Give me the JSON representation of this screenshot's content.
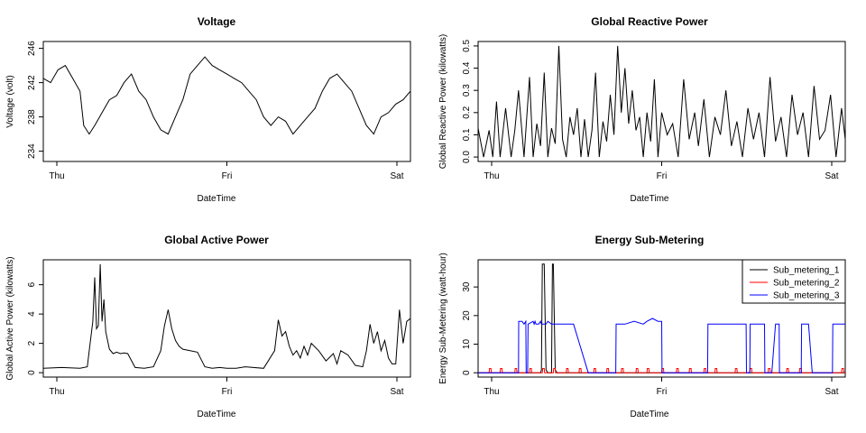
{
  "chart_data": [
    {
      "id": "voltage",
      "type": "line",
      "title": "Voltage",
      "xlabel": "DateTime",
      "ylabel": "Voltage (volt)",
      "xticks": [
        "Thu",
        "Fri",
        "Sat"
      ],
      "yticks": [
        234,
        238,
        242,
        246
      ],
      "xlim": [
        0,
        2
      ],
      "ylim": [
        232.8,
        246.8
      ],
      "grid": false,
      "series": [
        {
          "color": "#000000",
          "x": [
            0,
            0.04,
            0.08,
            0.12,
            0.16,
            0.2,
            0.22,
            0.25,
            0.28,
            0.32,
            0.36,
            0.4,
            0.44,
            0.48,
            0.52,
            0.56,
            0.6,
            0.64,
            0.68,
            0.72,
            0.76,
            0.8,
            0.84,
            0.88,
            0.92,
            0.96,
            1.0,
            1.04,
            1.08,
            1.12,
            1.16,
            1.2,
            1.24,
            1.28,
            1.32,
            1.36,
            1.4,
            1.44,
            1.48,
            1.52,
            1.56,
            1.6,
            1.64,
            1.68,
            1.72,
            1.76,
            1.8,
            1.84,
            1.88,
            1.92,
            1.96,
            2.0
          ],
          "y": [
            242.5,
            242,
            243.5,
            244,
            242.5,
            241,
            237,
            236,
            237,
            238.5,
            240,
            240.5,
            242,
            243,
            241,
            240,
            238,
            236.5,
            236,
            238,
            240,
            243,
            244,
            245,
            244,
            243.5,
            243,
            242.5,
            242,
            241,
            240,
            238,
            237,
            238,
            237.5,
            236,
            237,
            238,
            239,
            241,
            242.5,
            243,
            242,
            241,
            239,
            237,
            236,
            238,
            238.5,
            239.5,
            240,
            241
          ]
        }
      ]
    },
    {
      "id": "reactive",
      "type": "line",
      "title": "Global Reactive Power",
      "xlabel": "DateTime",
      "ylabel": "Global Reactive Power (kilowatts)",
      "xticks": [
        "Thu",
        "Fri",
        "Sat"
      ],
      "yticks": [
        0.0,
        0.1,
        0.2,
        0.3,
        0.4,
        0.5
      ],
      "xlim": [
        0,
        2
      ],
      "ylim": [
        -0.02,
        0.52
      ],
      "grid": false,
      "series": [
        {
          "color": "#000000",
          "x": [
            0,
            0.03,
            0.06,
            0.08,
            0.1,
            0.12,
            0.15,
            0.18,
            0.2,
            0.22,
            0.25,
            0.28,
            0.3,
            0.32,
            0.34,
            0.36,
            0.38,
            0.4,
            0.42,
            0.44,
            0.46,
            0.48,
            0.5,
            0.52,
            0.54,
            0.56,
            0.58,
            0.6,
            0.62,
            0.64,
            0.66,
            0.68,
            0.7,
            0.72,
            0.74,
            0.76,
            0.78,
            0.8,
            0.82,
            0.84,
            0.86,
            0.88,
            0.9,
            0.92,
            0.94,
            0.96,
            0.98,
            1.0,
            1.03,
            1.06,
            1.09,
            1.12,
            1.15,
            1.18,
            1.2,
            1.23,
            1.26,
            1.29,
            1.32,
            1.35,
            1.38,
            1.41,
            1.44,
            1.47,
            1.5,
            1.53,
            1.56,
            1.59,
            1.62,
            1.65,
            1.68,
            1.71,
            1.74,
            1.77,
            1.8,
            1.83,
            1.86,
            1.89,
            1.92,
            1.95,
            1.98,
            2.0
          ],
          "y": [
            0.13,
            0,
            0.12,
            0,
            0.25,
            0,
            0.22,
            0,
            0.12,
            0.3,
            0,
            0.36,
            0,
            0.15,
            0.05,
            0.38,
            0,
            0.13,
            0.06,
            0.5,
            0.08,
            0,
            0.18,
            0.1,
            0.22,
            0,
            0.17,
            0,
            0.12,
            0.38,
            0,
            0.16,
            0.07,
            0.28,
            0.1,
            0.5,
            0.2,
            0.4,
            0.15,
            0.3,
            0.12,
            0.18,
            0,
            0.2,
            0.07,
            0.35,
            0,
            0.2,
            0.1,
            0.15,
            0,
            0.35,
            0.08,
            0.2,
            0.05,
            0.26,
            0,
            0.18,
            0.1,
            0.3,
            0.05,
            0.16,
            0,
            0.22,
            0.08,
            0.2,
            0,
            0.36,
            0.07,
            0.18,
            0,
            0.28,
            0.1,
            0.2,
            0,
            0.32,
            0.08,
            0.12,
            0.28,
            0,
            0.22,
            0.08
          ]
        }
      ]
    },
    {
      "id": "active",
      "type": "line",
      "title": "Global Active Power",
      "xlabel": "DateTime",
      "ylabel": "Global Active Power (kilowatts)",
      "xticks": [
        "Thu",
        "Fri",
        "Sat"
      ],
      "yticks": [
        0,
        2,
        4,
        6
      ],
      "xlim": [
        0,
        2
      ],
      "ylim": [
        -0.3,
        7.7
      ],
      "grid": false,
      "series": [
        {
          "color": "#000000",
          "x": [
            0,
            0.1,
            0.2,
            0.24,
            0.25,
            0.27,
            0.28,
            0.29,
            0.3,
            0.31,
            0.32,
            0.33,
            0.34,
            0.36,
            0.38,
            0.4,
            0.42,
            0.44,
            0.46,
            0.5,
            0.55,
            0.6,
            0.64,
            0.66,
            0.68,
            0.7,
            0.72,
            0.74,
            0.76,
            0.8,
            0.84,
            0.88,
            0.92,
            0.96,
            1.0,
            1.05,
            1.1,
            1.2,
            1.26,
            1.28,
            1.3,
            1.32,
            1.34,
            1.36,
            1.38,
            1.4,
            1.42,
            1.44,
            1.46,
            1.5,
            1.54,
            1.58,
            1.6,
            1.62,
            1.66,
            1.7,
            1.74,
            1.76,
            1.78,
            1.8,
            1.82,
            1.84,
            1.86,
            1.88,
            1.9,
            1.92,
            1.94,
            1.96,
            1.98,
            2.0
          ],
          "y": [
            0.3,
            0.35,
            0.3,
            0.4,
            1.5,
            3.5,
            6.5,
            3,
            3.2,
            7.4,
            3.5,
            5,
            2.8,
            1.6,
            1.3,
            1.4,
            1.3,
            1.35,
            1.3,
            0.35,
            0.3,
            0.4,
            1.5,
            3.2,
            4.3,
            3,
            2.2,
            1.8,
            1.6,
            1.5,
            1.4,
            0.4,
            0.3,
            0.35,
            0.3,
            0.3,
            0.4,
            0.3,
            1.5,
            3.6,
            2.5,
            2.8,
            1.8,
            1.2,
            1.5,
            1,
            1.8,
            1.2,
            2,
            1.5,
            0.8,
            1.3,
            0.6,
            1.5,
            1.2,
            0.5,
            0.4,
            1.5,
            3.3,
            2,
            2.8,
            1.5,
            2.2,
            1,
            0.6,
            0.6,
            4.3,
            2,
            3.5,
            3.7
          ]
        }
      ]
    },
    {
      "id": "submetering",
      "type": "line",
      "title": "Energy Sub-Metering",
      "xlabel": "DateTime",
      "ylabel": "Energy Sub-Metering (watt-hour)",
      "xticks": [
        "Thu",
        "Fri",
        "Sat"
      ],
      "yticks": [
        0,
        10,
        20,
        30
      ],
      "xlim": [
        0,
        2
      ],
      "ylim": [
        -1.5,
        39.5
      ],
      "grid": false,
      "legend": {
        "placement": "top-right",
        "box": true
      },
      "series": [
        {
          "name": "Sub_metering_1",
          "color": "#000000",
          "x": [
            0,
            0.34,
            0.345,
            0.35,
            0.36,
            0.37,
            0.38,
            0.4,
            0.405,
            0.41,
            0.42,
            0.43,
            0.44,
            2.0
          ],
          "y": [
            0,
            0,
            1,
            38,
            38,
            1,
            0,
            0,
            38,
            38,
            1,
            0,
            0,
            0
          ]
        },
        {
          "name": "Sub_metering_2",
          "color": "#ff0000",
          "x": [
            0,
            0.06,
            0.062,
            0.07,
            0.072,
            0.12,
            0.122,
            0.13,
            0.132,
            0.2,
            0.202,
            0.21,
            0.212,
            0.28,
            0.282,
            0.29,
            0.292,
            0.35,
            0.352,
            0.36,
            0.362,
            0.41,
            0.412,
            0.42,
            0.422,
            0.48,
            0.482,
            0.49,
            0.492,
            0.55,
            0.552,
            0.56,
            0.562,
            0.63,
            0.632,
            0.64,
            0.642,
            0.7,
            0.702,
            0.71,
            0.712,
            0.78,
            0.782,
            0.79,
            0.792,
            0.86,
            0.862,
            0.87,
            0.872,
            0.92,
            0.922,
            0.93,
            0.932,
            1.0,
            1.002,
            1.01,
            1.012,
            1.08,
            1.082,
            1.09,
            1.092,
            1.15,
            1.152,
            1.16,
            1.162,
            1.23,
            1.232,
            1.24,
            1.242,
            1.29,
            1.292,
            1.3,
            1.302,
            1.4,
            1.402,
            1.41,
            1.412,
            1.48,
            1.482,
            1.49,
            1.492,
            1.58,
            1.582,
            1.59,
            1.592,
            1.68,
            1.682,
            1.69,
            1.692,
            1.75,
            1.752,
            1.76,
            1.762,
            1.98,
            1.982,
            1.99,
            1.992,
            2.0
          ],
          "y": [
            0,
            0,
            1.5,
            1.5,
            0,
            0,
            1.5,
            1.5,
            0,
            0,
            1.5,
            1.5,
            0,
            0,
            1.5,
            1.5,
            0,
            0,
            1.5,
            1.5,
            0,
            0,
            1.5,
            1.5,
            0,
            0,
            1.5,
            1.5,
            0,
            0,
            1.5,
            1.5,
            0,
            0,
            1.5,
            1.5,
            0,
            0,
            1.5,
            1.5,
            0,
            0,
            1.5,
            1.5,
            0,
            0,
            1.5,
            1.5,
            0,
            0,
            1.5,
            1.5,
            0,
            0,
            1.5,
            1.5,
            0,
            0,
            1.5,
            1.5,
            0,
            0,
            1.5,
            1.5,
            0,
            0,
            1.5,
            1.5,
            0,
            0,
            1.5,
            1.5,
            0,
            0,
            1.5,
            1.5,
            0,
            0,
            1.5,
            1.5,
            0,
            0,
            1.5,
            1.5,
            0,
            0,
            1.5,
            1.5,
            0,
            0,
            1.5,
            1.5,
            0,
            0,
            1.5,
            1.5,
            0,
            0
          ]
        },
        {
          "name": "Sub_metering_3",
          "color": "#0000ff",
          "x": [
            0,
            0.22,
            0.221,
            0.24,
            0.25,
            0.26,
            0.262,
            0.27,
            0.272,
            0.3,
            0.305,
            0.31,
            0.315,
            0.33,
            0.34,
            0.345,
            0.37,
            0.38,
            0.4,
            0.42,
            0.44,
            0.46,
            0.48,
            0.5,
            0.52,
            0.6,
            0.75,
            0.752,
            0.8,
            0.85,
            0.9,
            0.92,
            0.95,
            0.98,
            1.0,
            1.002,
            1.2,
            1.25,
            1.252,
            1.3,
            1.35,
            1.4,
            1.45,
            1.46,
            1.462,
            1.48,
            1.482,
            1.56,
            1.562,
            1.6,
            1.62,
            1.64,
            1.642,
            1.7,
            1.75,
            1.76,
            1.762,
            1.8,
            1.82,
            1.84,
            1.842,
            1.93,
            1.932,
            1.98,
            2.0
          ],
          "y": [
            0,
            0,
            18,
            18,
            17,
            18,
            0,
            0,
            17,
            18,
            17,
            18,
            17,
            17,
            18,
            17,
            17,
            18,
            17,
            17,
            17,
            17,
            17,
            17,
            17,
            0,
            0,
            17,
            17,
            18,
            17,
            18,
            19,
            18,
            18,
            0,
            0,
            0,
            17,
            17,
            17,
            17,
            17,
            17,
            0,
            0,
            17,
            17,
            0,
            0,
            17,
            17,
            0,
            0,
            0,
            0,
            17,
            17,
            0,
            0,
            0,
            0,
            17,
            17,
            17
          ]
        }
      ]
    }
  ]
}
